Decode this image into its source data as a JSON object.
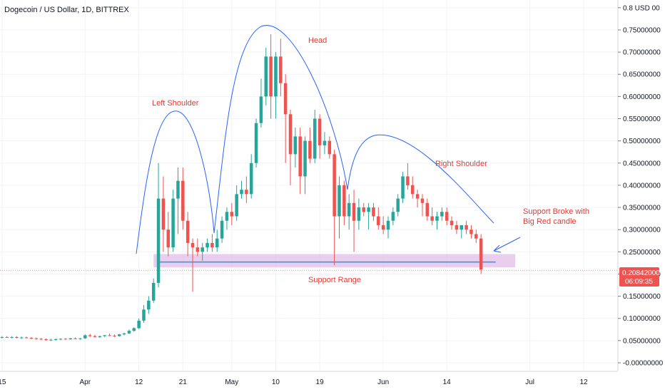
{
  "header": {
    "title": "Dogecoin / US Dollar, 1D, BITTREX"
  },
  "colors": {
    "up": "#26a69a",
    "down": "#ef5350",
    "pattern_line": "#2962ff",
    "annotation": "#e53935",
    "support_box": "#e1bee7",
    "support_line": "#2196f3",
    "last_price_bg": "#ef5350",
    "grid": "#f0f3fa"
  },
  "chart_data": {
    "type": "candlestick",
    "title": "Dogecoin / US Dollar, 1D, BITTREX",
    "currency": "USD",
    "y_unit_label": "USD",
    "ylim": [
      -0.03,
      0.8
    ],
    "y_ticks": [
      "0.8",
      "0.75000000",
      "0.70000000",
      "0.65000000",
      "0.60000000",
      "0.55000000",
      "0.50000000",
      "0.45000000",
      "0.40000000",
      "0.35000000",
      "0.30000000",
      "0.25000000",
      "0.20000000",
      "0.15000000",
      "0.10000000",
      "0.05000000",
      "-0.00000000"
    ],
    "y_tick_values": [
      0.8,
      0.75,
      0.7,
      0.65,
      0.6,
      0.55,
      0.5,
      0.45,
      0.4,
      0.35,
      0.3,
      0.25,
      0.2,
      0.15,
      0.1,
      0.05,
      0.0
    ],
    "x_ticks": [
      {
        "label": "15",
        "date": "2021-03-15"
      },
      {
        "label": "Apr",
        "date": "2021-04-01"
      },
      {
        "label": "12",
        "date": "2021-04-12"
      },
      {
        "label": "21",
        "date": "2021-04-21"
      },
      {
        "label": "May",
        "date": "2021-05-01"
      },
      {
        "label": "10",
        "date": "2021-05-10"
      },
      {
        "label": "19",
        "date": "2021-05-19"
      },
      {
        "label": "Jun",
        "date": "2021-06-01"
      },
      {
        "label": "14",
        "date": "2021-06-14"
      },
      {
        "label": "Jul",
        "date": "2021-07-01"
      },
      {
        "label": "12",
        "date": "2021-07-12"
      }
    ],
    "xlim": [
      "2021-03-14",
      "2021-07-16"
    ],
    "last_price": {
      "value": "0.20842000",
      "countdown": "06:09:35",
      "numeric": 0.20842
    },
    "grid": true,
    "candles": [
      {
        "d": "2021-03-14",
        "o": 0.058,
        "h": 0.061,
        "l": 0.056,
        "c": 0.057
      },
      {
        "d": "2021-03-15",
        "o": 0.057,
        "h": 0.06,
        "l": 0.055,
        "c": 0.058
      },
      {
        "d": "2021-03-16",
        "o": 0.058,
        "h": 0.06,
        "l": 0.056,
        "c": 0.057
      },
      {
        "d": "2021-03-17",
        "o": 0.057,
        "h": 0.06,
        "l": 0.055,
        "c": 0.058
      },
      {
        "d": "2021-03-18",
        "o": 0.058,
        "h": 0.06,
        "l": 0.055,
        "c": 0.056
      },
      {
        "d": "2021-03-19",
        "o": 0.056,
        "h": 0.059,
        "l": 0.054,
        "c": 0.057
      },
      {
        "d": "2021-03-20",
        "o": 0.057,
        "h": 0.059,
        "l": 0.055,
        "c": 0.056
      },
      {
        "d": "2021-03-21",
        "o": 0.056,
        "h": 0.058,
        "l": 0.053,
        "c": 0.055
      },
      {
        "d": "2021-03-22",
        "o": 0.055,
        "h": 0.057,
        "l": 0.052,
        "c": 0.054
      },
      {
        "d": "2021-03-23",
        "o": 0.054,
        "h": 0.056,
        "l": 0.051,
        "c": 0.053
      },
      {
        "d": "2021-03-24",
        "o": 0.053,
        "h": 0.055,
        "l": 0.05,
        "c": 0.051
      },
      {
        "d": "2021-03-25",
        "o": 0.051,
        "h": 0.054,
        "l": 0.049,
        "c": 0.052
      },
      {
        "d": "2021-03-26",
        "o": 0.052,
        "h": 0.055,
        "l": 0.05,
        "c": 0.053
      },
      {
        "d": "2021-03-27",
        "o": 0.053,
        "h": 0.055,
        "l": 0.051,
        "c": 0.054
      },
      {
        "d": "2021-03-28",
        "o": 0.054,
        "h": 0.056,
        "l": 0.052,
        "c": 0.053
      },
      {
        "d": "2021-03-29",
        "o": 0.053,
        "h": 0.056,
        "l": 0.052,
        "c": 0.055
      },
      {
        "d": "2021-03-30",
        "o": 0.055,
        "h": 0.057,
        "l": 0.053,
        "c": 0.054
      },
      {
        "d": "2021-03-31",
        "o": 0.054,
        "h": 0.056,
        "l": 0.052,
        "c": 0.055
      },
      {
        "d": "2021-04-01",
        "o": 0.055,
        "h": 0.064,
        "l": 0.054,
        "c": 0.062
      },
      {
        "d": "2021-04-02",
        "o": 0.062,
        "h": 0.065,
        "l": 0.058,
        "c": 0.06
      },
      {
        "d": "2021-04-03",
        "o": 0.06,
        "h": 0.063,
        "l": 0.057,
        "c": 0.058
      },
      {
        "d": "2021-04-04",
        "o": 0.058,
        "h": 0.061,
        "l": 0.056,
        "c": 0.06
      },
      {
        "d": "2021-04-05",
        "o": 0.06,
        "h": 0.063,
        "l": 0.058,
        "c": 0.062
      },
      {
        "d": "2021-04-06",
        "o": 0.062,
        "h": 0.066,
        "l": 0.06,
        "c": 0.061
      },
      {
        "d": "2021-04-07",
        "o": 0.061,
        "h": 0.064,
        "l": 0.058,
        "c": 0.06
      },
      {
        "d": "2021-04-08",
        "o": 0.06,
        "h": 0.065,
        "l": 0.059,
        "c": 0.064
      },
      {
        "d": "2021-04-09",
        "o": 0.064,
        "h": 0.068,
        "l": 0.062,
        "c": 0.066
      },
      {
        "d": "2021-04-10",
        "o": 0.066,
        "h": 0.075,
        "l": 0.065,
        "c": 0.072
      },
      {
        "d": "2021-04-11",
        "o": 0.072,
        "h": 0.08,
        "l": 0.07,
        "c": 0.078
      },
      {
        "d": "2021-04-12",
        "o": 0.078,
        "h": 0.1,
        "l": 0.076,
        "c": 0.095
      },
      {
        "d": "2021-04-13",
        "o": 0.095,
        "h": 0.13,
        "l": 0.09,
        "c": 0.12
      },
      {
        "d": "2021-04-14",
        "o": 0.12,
        "h": 0.15,
        "l": 0.11,
        "c": 0.14
      },
      {
        "d": "2021-04-15",
        "o": 0.14,
        "h": 0.19,
        "l": 0.135,
        "c": 0.18
      },
      {
        "d": "2021-04-16",
        "o": 0.18,
        "h": 0.45,
        "l": 0.17,
        "c": 0.37
      },
      {
        "d": "2021-04-17",
        "o": 0.37,
        "h": 0.42,
        "l": 0.25,
        "c": 0.3
      },
      {
        "d": "2021-04-18",
        "o": 0.3,
        "h": 0.34,
        "l": 0.24,
        "c": 0.26
      },
      {
        "d": "2021-04-19",
        "o": 0.26,
        "h": 0.39,
        "l": 0.25,
        "c": 0.37
      },
      {
        "d": "2021-04-20",
        "o": 0.37,
        "h": 0.44,
        "l": 0.29,
        "c": 0.41
      },
      {
        "d": "2021-04-21",
        "o": 0.41,
        "h": 0.44,
        "l": 0.3,
        "c": 0.32
      },
      {
        "d": "2021-04-22",
        "o": 0.32,
        "h": 0.34,
        "l": 0.24,
        "c": 0.27
      },
      {
        "d": "2021-04-23",
        "o": 0.27,
        "h": 0.28,
        "l": 0.16,
        "c": 0.26
      },
      {
        "d": "2021-04-24",
        "o": 0.26,
        "h": 0.28,
        "l": 0.24,
        "c": 0.25
      },
      {
        "d": "2021-04-25",
        "o": 0.25,
        "h": 0.27,
        "l": 0.23,
        "c": 0.26
      },
      {
        "d": "2021-04-26",
        "o": 0.26,
        "h": 0.28,
        "l": 0.25,
        "c": 0.27
      },
      {
        "d": "2021-04-27",
        "o": 0.27,
        "h": 0.29,
        "l": 0.25,
        "c": 0.26
      },
      {
        "d": "2021-04-28",
        "o": 0.26,
        "h": 0.3,
        "l": 0.25,
        "c": 0.28
      },
      {
        "d": "2021-04-29",
        "o": 0.28,
        "h": 0.33,
        "l": 0.27,
        "c": 0.32
      },
      {
        "d": "2021-04-30",
        "o": 0.32,
        "h": 0.35,
        "l": 0.3,
        "c": 0.34
      },
      {
        "d": "2021-05-01",
        "o": 0.34,
        "h": 0.36,
        "l": 0.31,
        "c": 0.33
      },
      {
        "d": "2021-05-02",
        "o": 0.33,
        "h": 0.4,
        "l": 0.32,
        "c": 0.38
      },
      {
        "d": "2021-05-03",
        "o": 0.38,
        "h": 0.41,
        "l": 0.37,
        "c": 0.39
      },
      {
        "d": "2021-05-04",
        "o": 0.39,
        "h": 0.42,
        "l": 0.36,
        "c": 0.38
      },
      {
        "d": "2021-05-05",
        "o": 0.38,
        "h": 0.47,
        "l": 0.37,
        "c": 0.45
      },
      {
        "d": "2021-05-06",
        "o": 0.45,
        "h": 0.55,
        "l": 0.44,
        "c": 0.54
      },
      {
        "d": "2021-05-07",
        "o": 0.54,
        "h": 0.64,
        "l": 0.53,
        "c": 0.6
      },
      {
        "d": "2021-05-08",
        "o": 0.6,
        "h": 0.71,
        "l": 0.58,
        "c": 0.69
      },
      {
        "d": "2021-05-09",
        "o": 0.69,
        "h": 0.74,
        "l": 0.55,
        "c": 0.6
      },
      {
        "d": "2021-05-10",
        "o": 0.6,
        "h": 0.7,
        "l": 0.55,
        "c": 0.69
      },
      {
        "d": "2021-05-11",
        "o": 0.69,
        "h": 0.73,
        "l": 0.6,
        "c": 0.63
      },
      {
        "d": "2021-05-12",
        "o": 0.63,
        "h": 0.65,
        "l": 0.45,
        "c": 0.56
      },
      {
        "d": "2021-05-13",
        "o": 0.56,
        "h": 0.57,
        "l": 0.4,
        "c": 0.47
      },
      {
        "d": "2021-05-14",
        "o": 0.47,
        "h": 0.53,
        "l": 0.44,
        "c": 0.51
      },
      {
        "d": "2021-05-15",
        "o": 0.51,
        "h": 0.53,
        "l": 0.38,
        "c": 0.42
      },
      {
        "d": "2021-05-16",
        "o": 0.42,
        "h": 0.51,
        "l": 0.38,
        "c": 0.5
      },
      {
        "d": "2021-05-17",
        "o": 0.5,
        "h": 0.53,
        "l": 0.45,
        "c": 0.46
      },
      {
        "d": "2021-05-18",
        "o": 0.46,
        "h": 0.57,
        "l": 0.45,
        "c": 0.55
      },
      {
        "d": "2021-05-19",
        "o": 0.55,
        "h": 0.56,
        "l": 0.46,
        "c": 0.49
      },
      {
        "d": "2021-05-20",
        "o": 0.49,
        "h": 0.52,
        "l": 0.47,
        "c": 0.5
      },
      {
        "d": "2021-05-21",
        "o": 0.5,
        "h": 0.51,
        "l": 0.46,
        "c": 0.47
      },
      {
        "d": "2021-05-22",
        "o": 0.47,
        "h": 0.48,
        "l": 0.22,
        "c": 0.33
      },
      {
        "d": "2021-05-23",
        "o": 0.33,
        "h": 0.42,
        "l": 0.28,
        "c": 0.4
      },
      {
        "d": "2021-05-24",
        "o": 0.4,
        "h": 0.41,
        "l": 0.31,
        "c": 0.33
      },
      {
        "d": "2021-05-25",
        "o": 0.33,
        "h": 0.38,
        "l": 0.3,
        "c": 0.36
      },
      {
        "d": "2021-05-26",
        "o": 0.36,
        "h": 0.39,
        "l": 0.25,
        "c": 0.32
      },
      {
        "d": "2021-05-27",
        "o": 0.32,
        "h": 0.37,
        "l": 0.3,
        "c": 0.35
      },
      {
        "d": "2021-05-28",
        "o": 0.35,
        "h": 0.36,
        "l": 0.33,
        "c": 0.34
      },
      {
        "d": "2021-05-29",
        "o": 0.34,
        "h": 0.36,
        "l": 0.3,
        "c": 0.35
      },
      {
        "d": "2021-05-30",
        "o": 0.35,
        "h": 0.36,
        "l": 0.32,
        "c": 0.33
      },
      {
        "d": "2021-05-31",
        "o": 0.33,
        "h": 0.35,
        "l": 0.3,
        "c": 0.31
      },
      {
        "d": "2021-06-01",
        "o": 0.31,
        "h": 0.33,
        "l": 0.29,
        "c": 0.3
      },
      {
        "d": "2021-06-02",
        "o": 0.3,
        "h": 0.33,
        "l": 0.28,
        "c": 0.32
      },
      {
        "d": "2021-06-03",
        "o": 0.32,
        "h": 0.35,
        "l": 0.31,
        "c": 0.34
      },
      {
        "d": "2021-06-04",
        "o": 0.34,
        "h": 0.38,
        "l": 0.33,
        "c": 0.37
      },
      {
        "d": "2021-06-05",
        "o": 0.37,
        "h": 0.43,
        "l": 0.36,
        "c": 0.42
      },
      {
        "d": "2021-06-06",
        "o": 0.42,
        "h": 0.45,
        "l": 0.39,
        "c": 0.4
      },
      {
        "d": "2021-06-07",
        "o": 0.4,
        "h": 0.42,
        "l": 0.37,
        "c": 0.38
      },
      {
        "d": "2021-06-08",
        "o": 0.38,
        "h": 0.39,
        "l": 0.35,
        "c": 0.37
      },
      {
        "d": "2021-06-09",
        "o": 0.37,
        "h": 0.38,
        "l": 0.33,
        "c": 0.36
      },
      {
        "d": "2021-06-10",
        "o": 0.36,
        "h": 0.37,
        "l": 0.32,
        "c": 0.33
      },
      {
        "d": "2021-06-11",
        "o": 0.33,
        "h": 0.35,
        "l": 0.31,
        "c": 0.32
      },
      {
        "d": "2021-06-12",
        "o": 0.32,
        "h": 0.34,
        "l": 0.3,
        "c": 0.33
      },
      {
        "d": "2021-06-13",
        "o": 0.33,
        "h": 0.35,
        "l": 0.32,
        "c": 0.34
      },
      {
        "d": "2021-06-14",
        "o": 0.34,
        "h": 0.35,
        "l": 0.31,
        "c": 0.32
      },
      {
        "d": "2021-06-15",
        "o": 0.32,
        "h": 0.33,
        "l": 0.3,
        "c": 0.31
      },
      {
        "d": "2021-06-16",
        "o": 0.31,
        "h": 0.32,
        "l": 0.29,
        "c": 0.3
      },
      {
        "d": "2021-06-17",
        "o": 0.3,
        "h": 0.31,
        "l": 0.28,
        "c": 0.31
      },
      {
        "d": "2021-06-18",
        "o": 0.31,
        "h": 0.32,
        "l": 0.29,
        "c": 0.3
      },
      {
        "d": "2021-06-19",
        "o": 0.3,
        "h": 0.31,
        "l": 0.28,
        "c": 0.29
      },
      {
        "d": "2021-06-20",
        "o": 0.29,
        "h": 0.3,
        "l": 0.27,
        "c": 0.28
      },
      {
        "d": "2021-06-21",
        "o": 0.28,
        "h": 0.29,
        "l": 0.2,
        "c": 0.21
      }
    ]
  },
  "annotations": {
    "head": "Head",
    "left_shoulder": "Left Shoulder",
    "right_shoulder": "Right Shoulder",
    "support_range": "Support Range",
    "support_broke_line1": "Support Broke with",
    "support_broke_line2": "Big Red candle"
  },
  "support_zone": {
    "low": 0.215,
    "high": 0.245,
    "line_price": 0.227
  }
}
